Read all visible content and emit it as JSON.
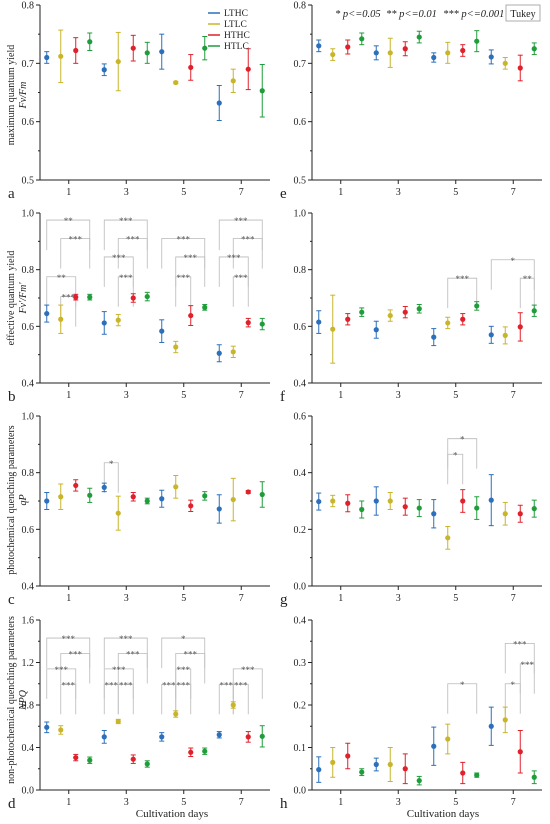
{
  "legend": {
    "labels": [
      "LTHC",
      "LTLC",
      "HTHC",
      "HTLC"
    ],
    "colors": [
      "#2c6fbb",
      "#c9b52a",
      "#e0202a",
      "#1f9d3a"
    ]
  },
  "significance_note": {
    "items": [
      "* p<=0.05",
      "** p<=0.01",
      "*** p<=0.001"
    ],
    "test": "Tukey"
  },
  "y_labels": {
    "fvfm": [
      "maximum quantum yield",
      "Fv/Fm"
    ],
    "fvfm_prime": [
      "effective quantum yield",
      "Fv'/Fm'"
    ],
    "qp": [
      "photochemical quenching parameters",
      "qP"
    ],
    "npq": [
      "non-photochemical quenching parameters",
      "NPQ"
    ]
  },
  "x_label": "Cultivation days",
  "chart_data": [
    {
      "type": "scatter",
      "panel": "a",
      "ylim": [
        0.5,
        0.8
      ],
      "yticks": [
        "0.5",
        "0.6",
        "0.7",
        "0.8"
      ],
      "categories": [
        "1",
        "3",
        "5",
        "7"
      ],
      "series": [
        {
          "name": "LTHC",
          "values": [
            0.71,
            0.689,
            0.72,
            0.632
          ],
          "errors": [
            0.01,
            0.01,
            0.03,
            0.03
          ]
        },
        {
          "name": "LTLC",
          "values": [
            0.712,
            0.703,
            0.667,
            0.67
          ],
          "errors": [
            0.045,
            0.05,
            0.002,
            0.02
          ]
        },
        {
          "name": "HTHC",
          "values": [
            0.722,
            0.726,
            0.693,
            0.69
          ],
          "errors": [
            0.022,
            0.022,
            0.022,
            0.035
          ]
        },
        {
          "name": "HTLC",
          "values": [
            0.737,
            0.718,
            0.726,
            0.653
          ],
          "errors": [
            0.015,
            0.018,
            0.02,
            0.045
          ]
        }
      ],
      "annotations": []
    },
    {
      "type": "scatter",
      "panel": "b",
      "ylim": [
        0.4,
        1.0
      ],
      "yticks": [
        "0.4",
        "0.6",
        "0.8",
        "1.0"
      ],
      "categories": [
        "1",
        "3",
        "5",
        "7"
      ],
      "series": [
        {
          "name": "LTHC",
          "values": [
            0.645,
            0.612,
            0.583,
            0.505
          ],
          "errors": [
            0.03,
            0.04,
            0.04,
            0.03
          ]
        },
        {
          "name": "LTLC",
          "values": [
            0.625,
            0.622,
            0.527,
            0.51
          ],
          "errors": [
            0.05,
            0.02,
            0.02,
            0.02
          ]
        },
        {
          "name": "HTHC",
          "values": [
            0.703,
            0.7,
            0.638,
            0.613
          ],
          "errors": [
            0.01,
            0.015,
            0.035,
            0.015
          ]
        },
        {
          "name": "HTLC",
          "values": [
            0.703,
            0.705,
            0.667,
            0.608
          ],
          "errors": [
            0.01,
            0.015,
            0.01,
            0.02
          ]
        }
      ],
      "annotations": [
        {
          "day": 0,
          "a": 0,
          "b": 3,
          "y": 0.975,
          "label": "**"
        },
        {
          "day": 0,
          "a": 1,
          "b": 3,
          "y": 0.91,
          "label": "***"
        },
        {
          "day": 0,
          "a": 0,
          "b": 2,
          "y": 0.775,
          "label": "**"
        },
        {
          "day": 0,
          "a": 1,
          "b": 2,
          "y": 0.705,
          "label": "***"
        },
        {
          "day": 1,
          "a": 0,
          "b": 3,
          "y": 0.975,
          "label": "***"
        },
        {
          "day": 1,
          "a": 1,
          "b": 3,
          "y": 0.91,
          "label": "***"
        },
        {
          "day": 1,
          "a": 0,
          "b": 2,
          "y": 0.845,
          "label": "***"
        },
        {
          "day": 1,
          "a": 1,
          "b": 2,
          "y": 0.775,
          "label": "***"
        },
        {
          "day": 2,
          "a": 0,
          "b": 3,
          "y": 0.91,
          "label": "***"
        },
        {
          "day": 2,
          "a": 1,
          "b": 3,
          "y": 0.845,
          "label": "***"
        },
        {
          "day": 2,
          "a": 1,
          "b": 2,
          "y": 0.775,
          "label": "***"
        },
        {
          "day": 3,
          "a": 0,
          "b": 3,
          "y": 0.975,
          "label": "***"
        },
        {
          "day": 3,
          "a": 1,
          "b": 3,
          "y": 0.91,
          "label": "***"
        },
        {
          "day": 3,
          "a": 0,
          "b": 2,
          "y": 0.845,
          "label": "***"
        },
        {
          "day": 3,
          "a": 1,
          "b": 2,
          "y": 0.775,
          "label": "***"
        }
      ]
    },
    {
      "type": "scatter",
      "panel": "c",
      "ylim": [
        0.4,
        1.0
      ],
      "yticks": [
        "0.4",
        "0.6",
        "0.8",
        "1.0"
      ],
      "categories": [
        "1",
        "3",
        "5",
        "7"
      ],
      "series": [
        {
          "name": "LTHC",
          "values": [
            0.7,
            0.748,
            0.708,
            0.672
          ],
          "errors": [
            0.03,
            0.015,
            0.03,
            0.05
          ]
        },
        {
          "name": "LTLC",
          "values": [
            0.715,
            0.657,
            0.75,
            0.705
          ],
          "errors": [
            0.045,
            0.06,
            0.04,
            0.075
          ]
        },
        {
          "name": "HTHC",
          "values": [
            0.755,
            0.715,
            0.683,
            0.732
          ],
          "errors": [
            0.02,
            0.015,
            0.02,
            0.005
          ]
        },
        {
          "name": "HTLC",
          "values": [
            0.72,
            0.7,
            0.718,
            0.723
          ],
          "errors": [
            0.025,
            0.01,
            0.015,
            0.045
          ]
        }
      ],
      "annotations": [
        {
          "day": 1,
          "a": 0,
          "b": 1,
          "y": 0.835,
          "label": "*"
        }
      ]
    },
    {
      "type": "scatter",
      "panel": "d",
      "ylim": [
        0.0,
        1.6
      ],
      "yticks": [
        "0.0",
        "0.4",
        "0.8",
        "1.2",
        "1.6"
      ],
      "categories": [
        "1",
        "3",
        "5",
        "7"
      ],
      "series": [
        {
          "name": "LTHC",
          "values": [
            0.59,
            0.5,
            0.5,
            0.52
          ],
          "errors": [
            0.05,
            0.06,
            0.04,
            0.03
          ]
        },
        {
          "name": "LTLC",
          "values": [
            0.565,
            0.645,
            0.715,
            0.8
          ],
          "errors": [
            0.04,
            0.02,
            0.03,
            0.03
          ]
        },
        {
          "name": "HTHC",
          "values": [
            0.305,
            0.29,
            0.355,
            0.5
          ],
          "errors": [
            0.03,
            0.04,
            0.04,
            0.05
          ]
        },
        {
          "name": "HTLC",
          "values": [
            0.28,
            0.245,
            0.365,
            0.505
          ],
          "errors": [
            0.03,
            0.03,
            0.03,
            0.1
          ]
        }
      ],
      "annotations": [
        {
          "day": 0,
          "a": 0,
          "b": 3,
          "y": 1.43,
          "label": "***"
        },
        {
          "day": 0,
          "a": 1,
          "b": 3,
          "y": 1.285,
          "label": "***"
        },
        {
          "day": 0,
          "a": 0,
          "b": 2,
          "y": 1.14,
          "label": "***"
        },
        {
          "day": 0,
          "a": 1,
          "b": 2,
          "y": 0.995,
          "label": "***"
        },
        {
          "day": 1,
          "a": 0,
          "b": 3,
          "y": 1.43,
          "label": "***"
        },
        {
          "day": 1,
          "a": 1,
          "b": 3,
          "y": 1.285,
          "label": "***"
        },
        {
          "day": 1,
          "a": 0,
          "b": 2,
          "y": 1.14,
          "label": "***"
        },
        {
          "day": 1,
          "a": 0,
          "b": 1,
          "y": 0.995,
          "label": "***"
        },
        {
          "day": 1,
          "a": 1,
          "b": 2,
          "y": 0.995,
          "label": "***"
        },
        {
          "day": 2,
          "a": 0,
          "b": 3,
          "y": 1.43,
          "label": "*"
        },
        {
          "day": 2,
          "a": 1,
          "b": 3,
          "y": 1.285,
          "label": "***"
        },
        {
          "day": 2,
          "a": 1,
          "b": 2,
          "y": 1.14,
          "label": "***"
        },
        {
          "day": 2,
          "a": 0,
          "b": 1,
          "y": 0.995,
          "label": "***"
        },
        {
          "day": 2,
          "a": 1,
          "b": 2,
          "y": 0.995,
          "label": "***"
        },
        {
          "day": 3,
          "a": 1,
          "b": 3,
          "y": 1.14,
          "label": "***"
        },
        {
          "day": 3,
          "a": 0,
          "b": 1,
          "y": 0.995,
          "label": "***"
        },
        {
          "day": 3,
          "a": 1,
          "b": 2,
          "y": 0.995,
          "label": "***"
        }
      ]
    },
    {
      "type": "scatter",
      "panel": "e",
      "ylim": [
        0.5,
        0.8
      ],
      "yticks": [
        "0.5",
        "0.6",
        "0.7",
        "0.8"
      ],
      "categories": [
        "1",
        "3",
        "5",
        "7"
      ],
      "series": [
        {
          "name": "LTHC",
          "values": [
            0.73,
            0.718,
            0.71,
            0.711
          ],
          "errors": [
            0.01,
            0.012,
            0.008,
            0.012
          ]
        },
        {
          "name": "LTLC",
          "values": [
            0.715,
            0.718,
            0.718,
            0.7
          ],
          "errors": [
            0.01,
            0.025,
            0.018,
            0.01
          ]
        },
        {
          "name": "HTHC",
          "values": [
            0.728,
            0.725,
            0.722,
            0.692
          ],
          "errors": [
            0.012,
            0.012,
            0.01,
            0.022
          ]
        },
        {
          "name": "HTLC",
          "values": [
            0.742,
            0.745,
            0.738,
            0.725
          ],
          "errors": [
            0.01,
            0.01,
            0.018,
            0.01
          ]
        }
      ],
      "annotations": []
    },
    {
      "type": "scatter",
      "panel": "f",
      "ylim": [
        0.4,
        1.0
      ],
      "yticks": [
        "0.4",
        "0.6",
        "0.8",
        "1.0"
      ],
      "categories": [
        "1",
        "3",
        "5",
        "7"
      ],
      "series": [
        {
          "name": "LTHC",
          "values": [
            0.615,
            0.588,
            0.562,
            0.57
          ],
          "errors": [
            0.04,
            0.03,
            0.03,
            0.03
          ]
        },
        {
          "name": "LTLC",
          "values": [
            0.59,
            0.638,
            0.612,
            0.568
          ],
          "errors": [
            0.12,
            0.02,
            0.02,
            0.03
          ]
        },
        {
          "name": "HTHC",
          "values": [
            0.625,
            0.65,
            0.625,
            0.598
          ],
          "errors": [
            0.02,
            0.02,
            0.02,
            0.05
          ]
        },
        {
          "name": "HTLC",
          "values": [
            0.65,
            0.662,
            0.672,
            0.655
          ],
          "errors": [
            0.015,
            0.015,
            0.015,
            0.02
          ]
        }
      ],
      "annotations": [
        {
          "day": 2,
          "a": 1,
          "b": 3,
          "y": 0.77,
          "label": "***"
        },
        {
          "day": 3,
          "a": 0,
          "b": 3,
          "y": 0.835,
          "label": "*"
        },
        {
          "day": 3,
          "a": 2,
          "b": 3,
          "y": 0.77,
          "label": "**"
        }
      ]
    },
    {
      "type": "scatter",
      "panel": "g",
      "ylim": [
        0.0,
        0.6
      ],
      "yticks": [
        "0.0",
        "0.2",
        "0.4",
        "0.6"
      ],
      "categories": [
        "1",
        "3",
        "5",
        "7"
      ],
      "series": [
        {
          "name": "LTHC",
          "values": [
            0.298,
            0.3,
            0.255,
            0.303
          ],
          "errors": [
            0.03,
            0.05,
            0.05,
            0.09
          ]
        },
        {
          "name": "LTLC",
          "values": [
            0.3,
            0.3,
            0.17,
            0.255
          ],
          "errors": [
            0.02,
            0.03,
            0.04,
            0.04
          ]
        },
        {
          "name": "HTHC",
          "values": [
            0.292,
            0.28,
            0.3,
            0.255
          ],
          "errors": [
            0.03,
            0.03,
            0.04,
            0.03
          ]
        },
        {
          "name": "HTLC",
          "values": [
            0.27,
            0.275,
            0.275,
            0.273
          ],
          "errors": [
            0.03,
            0.03,
            0.04,
            0.03
          ]
        }
      ],
      "annotations": [
        {
          "day": 2,
          "a": 1,
          "b": 3,
          "y": 0.52,
          "label": "*"
        },
        {
          "day": 2,
          "a": 1,
          "b": 2,
          "y": 0.465,
          "label": "*"
        }
      ]
    },
    {
      "type": "scatter",
      "panel": "h",
      "ylim": [
        0.0,
        0.4
      ],
      "yticks": [
        "0.0",
        "0.1",
        "0.2",
        "0.3",
        "0.4"
      ],
      "categories": [
        "1",
        "3",
        "5",
        "7"
      ],
      "series": [
        {
          "name": "LTHC",
          "values": [
            0.048,
            0.06,
            0.103,
            0.15
          ],
          "errors": [
            0.03,
            0.015,
            0.045,
            0.045
          ]
        },
        {
          "name": "LTLC",
          "values": [
            0.065,
            0.06,
            0.12,
            0.165
          ],
          "errors": [
            0.035,
            0.04,
            0.035,
            0.03
          ]
        },
        {
          "name": "HTHC",
          "values": [
            0.08,
            0.05,
            0.04,
            0.09
          ],
          "errors": [
            0.03,
            0.035,
            0.025,
            0.05
          ]
        },
        {
          "name": "HTLC",
          "values": [
            0.042,
            0.022,
            0.035,
            0.03
          ],
          "errors": [
            0.008,
            0.01,
            0.005,
            0.015
          ]
        }
      ],
      "annotations": [
        {
          "day": 2,
          "a": 1,
          "b": 3,
          "y": 0.25,
          "label": "*"
        },
        {
          "day": 3,
          "a": 1,
          "b": 3,
          "y": 0.345,
          "label": "***"
        },
        {
          "day": 3,
          "a": 2,
          "b": 3,
          "y": 0.297,
          "label": "***"
        },
        {
          "day": 3,
          "a": 1,
          "b": 2,
          "y": 0.25,
          "label": "*"
        }
      ]
    }
  ]
}
